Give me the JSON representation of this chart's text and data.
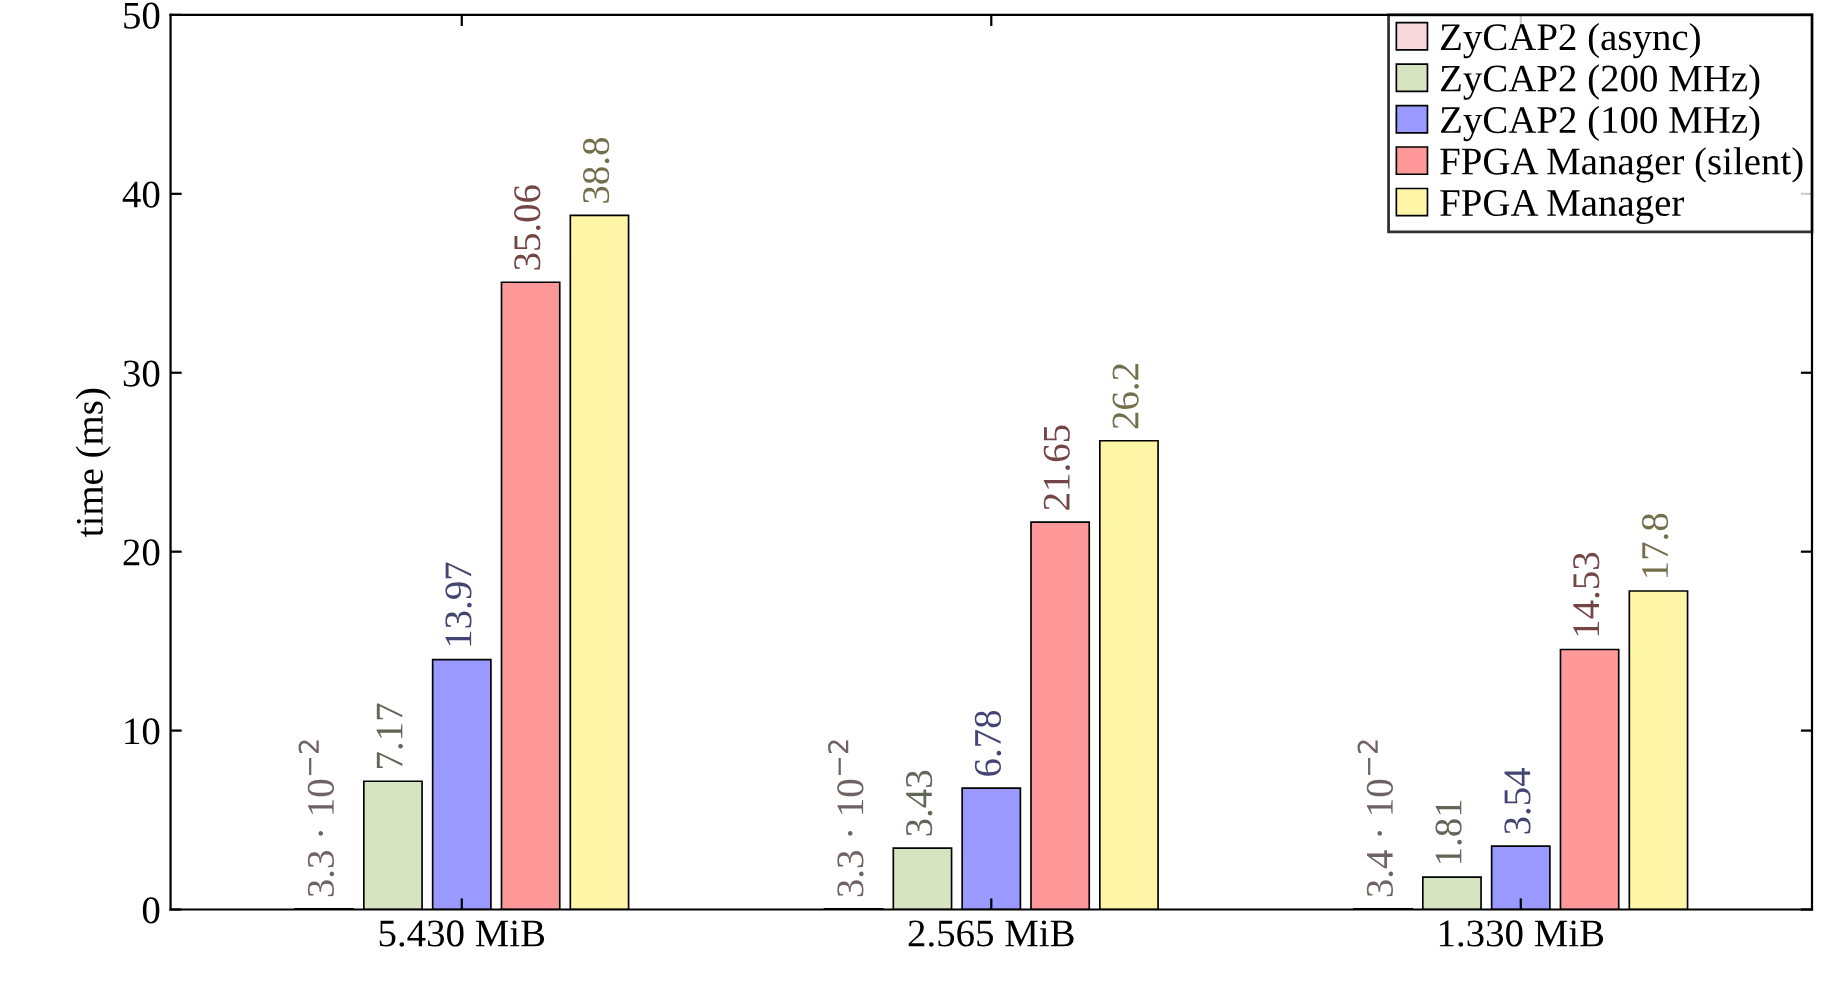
{
  "chart_data": {
    "type": "bar",
    "ylabel": "time (ms)",
    "categories": [
      "5.430 MiB",
      "2.565 MiB",
      "1.330 MiB"
    ],
    "series": [
      {
        "name": "ZyCAP2 (async)",
        "color": "#f7d9dc",
        "values": [
          0.033,
          0.033,
          0.034
        ],
        "value_labels": [
          "3.3 · 10$^{−2}$",
          "3.3 · 10$^{−2}$",
          "3.4 · 10$^{−2}$"
        ]
      },
      {
        "name": "ZyCAP2 (200 MHz)",
        "color": "#d6e4bf",
        "values": [
          7.17,
          3.43,
          1.81
        ],
        "value_labels": [
          "7.17",
          "3.43",
          "1.81"
        ]
      },
      {
        "name": "ZyCAP2 (100 MHz)",
        "color": "#9999ff",
        "values": [
          13.97,
          6.78,
          3.54
        ],
        "value_labels": [
          "13.97",
          "6.78",
          "3.54"
        ]
      },
      {
        "name": "FPGA Manager (silent)",
        "color": "#ff9999",
        "values": [
          35.06,
          21.65,
          14.53
        ],
        "value_labels": [
          "35.06",
          "21.65",
          "14.53"
        ]
      },
      {
        "name": "FPGA Manager",
        "color": "#fff5a6",
        "values": [
          38.8,
          26.2,
          17.8
        ],
        "value_labels": [
          "38.8",
          "26.2",
          "17.8"
        ]
      }
    ],
    "ylim": [
      0,
      50
    ],
    "yticks": [
      0,
      10,
      20,
      30,
      40,
      50
    ],
    "grid": false,
    "legend": "top right"
  }
}
